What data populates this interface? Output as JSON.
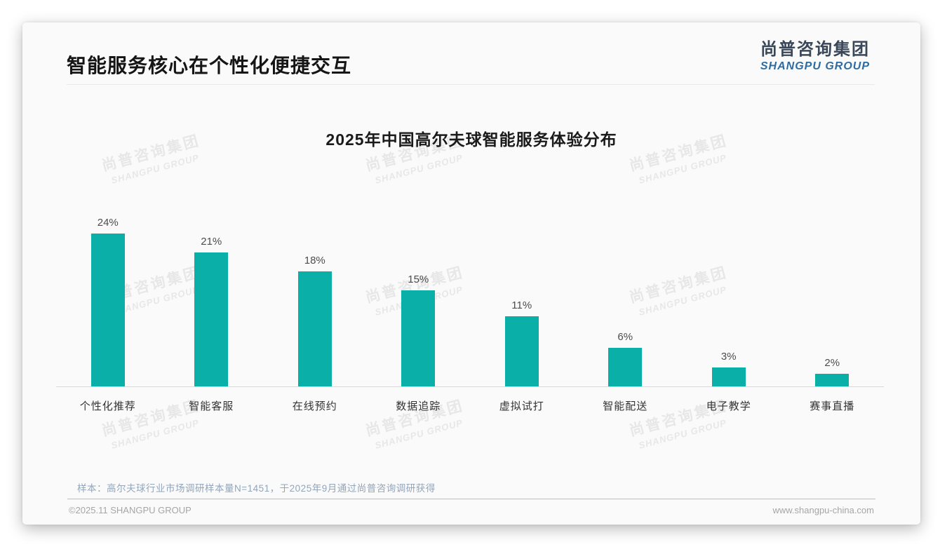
{
  "page": {
    "title": "智能服务核心在个性化便捷交互",
    "logo": {
      "cn": "尚普咨询集团",
      "en": "SHANGPU GROUP"
    },
    "watermark": {
      "line1": "尚普咨询集团",
      "line2": "SHANGPU GROUP"
    },
    "sample_note": "样本：高尔夫球行业市场调研样本量N=1451，于2025年9月通过尚普咨询调研获得",
    "footer": {
      "left": "©2025.11 SHANGPU GROUP",
      "right": "www.shangpu-china.com"
    }
  },
  "chart_data": {
    "type": "bar",
    "title": "2025年中国高尔夫球智能服务体验分布",
    "categories": [
      "个性化推荐",
      "智能客服",
      "在线预约",
      "数据追踪",
      "虚拟试打",
      "智能配送",
      "电子教学",
      "赛事直播"
    ],
    "values": [
      24,
      21,
      18,
      15,
      11,
      6,
      3,
      2
    ],
    "data_labels": [
      "24%",
      "21%",
      "18%",
      "15%",
      "11%",
      "6%",
      "3%",
      "2%"
    ],
    "unit": "%",
    "bar_color": "#0aafa8",
    "ylim": [
      0,
      26
    ],
    "grid": false,
    "legend": false,
    "axis_line_color": "#d9d9d9",
    "xlabel": "",
    "ylabel": ""
  }
}
